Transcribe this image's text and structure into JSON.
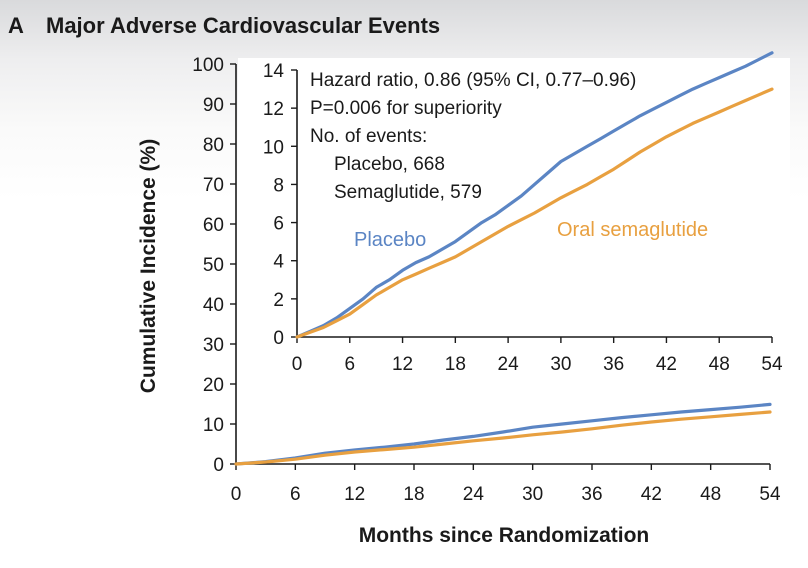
{
  "panel_letter": "A",
  "title": "Major Adverse Cardiovascular Events",
  "colors": {
    "placebo": "#5b85c4",
    "semaglutide": "#e8a040",
    "axis": "#1a1a1a"
  },
  "chart_data": [
    {
      "id": "main",
      "type": "line",
      "title": "Major Adverse Cardiovascular Events",
      "xlabel": "Months since Randomization",
      "ylabel": "Cumulative Incidence (%)",
      "xlim": [
        0,
        54
      ],
      "ylim": [
        0,
        100
      ],
      "xticks": [
        0,
        6,
        12,
        18,
        24,
        30,
        36,
        42,
        48,
        54
      ],
      "yticks": [
        0,
        10,
        20,
        30,
        40,
        50,
        60,
        70,
        80,
        90,
        100
      ],
      "series": [
        {
          "name": "Placebo",
          "x": [
            0,
            3,
            6,
            9,
            12,
            15,
            18,
            21,
            24,
            27,
            30,
            33,
            36,
            39,
            42,
            45,
            48,
            51,
            54
          ],
          "y": [
            0,
            0.6,
            1.5,
            2.7,
            3.5,
            4.2,
            5.0,
            6.0,
            6.9,
            8.0,
            9.2,
            10.0,
            10.8,
            11.6,
            12.3,
            13.0,
            13.6,
            14.2,
            14.9
          ]
        },
        {
          "name": "Oral semaglutide",
          "x": [
            0,
            3,
            6,
            9,
            12,
            15,
            18,
            21,
            24,
            27,
            30,
            33,
            36,
            39,
            42,
            45,
            48,
            51,
            54
          ],
          "y": [
            0,
            0.5,
            1.2,
            2.2,
            3.0,
            3.6,
            4.2,
            5.0,
            5.8,
            6.5,
            7.3,
            8.0,
            8.8,
            9.7,
            10.5,
            11.2,
            11.8,
            12.4,
            13.0
          ]
        }
      ]
    },
    {
      "id": "inset",
      "type": "line",
      "xlim": [
        0,
        54
      ],
      "ylim": [
        0,
        14
      ],
      "xticks": [
        0,
        6,
        12,
        18,
        24,
        30,
        36,
        42,
        48,
        54
      ],
      "yticks": [
        0,
        2,
        4,
        6,
        8,
        10,
        12,
        14
      ],
      "annotations": [
        "Hazard ratio, 0.86 (95% CI, 0.77–0.96)",
        "P=0.006 for superiority",
        "No. of events:",
        "Placebo, 668",
        "Semaglutide, 579"
      ],
      "series_labels": [
        "Placebo",
        "Oral semaglutide"
      ],
      "series": [
        {
          "name": "Placebo",
          "x": [
            0,
            1.5,
            3,
            4.5,
            6,
            7.5,
            9,
            10.5,
            12,
            13.5,
            15,
            16.5,
            18,
            19.5,
            21,
            22.5,
            24,
            25.5,
            27,
            28.5,
            30,
            31.5,
            33,
            34.5,
            36,
            37.5,
            39,
            40.5,
            42,
            43.5,
            45,
            46.5,
            48,
            49.5,
            51,
            52.5,
            54
          ],
          "y": [
            0,
            0.3,
            0.6,
            1.0,
            1.5,
            2.0,
            2.6,
            3.0,
            3.5,
            3.9,
            4.2,
            4.6,
            5.0,
            5.5,
            6.0,
            6.4,
            6.9,
            7.4,
            8.0,
            8.6,
            9.2,
            9.6,
            10.0,
            10.4,
            10.8,
            11.2,
            11.6,
            11.95,
            12.3,
            12.65,
            13.0,
            13.3,
            13.6,
            13.9,
            14.2,
            14.55,
            14.9
          ]
        },
        {
          "name": "Oral semaglutide",
          "x": [
            0,
            1.5,
            3,
            4.5,
            6,
            7.5,
            9,
            10.5,
            12,
            13.5,
            15,
            16.5,
            18,
            19.5,
            21,
            22.5,
            24,
            25.5,
            27,
            28.5,
            30,
            31.5,
            33,
            34.5,
            36,
            37.5,
            39,
            40.5,
            42,
            43.5,
            45,
            46.5,
            48,
            49.5,
            51,
            52.5,
            54
          ],
          "y": [
            0,
            0.25,
            0.5,
            0.85,
            1.2,
            1.7,
            2.2,
            2.6,
            3.0,
            3.3,
            3.6,
            3.9,
            4.2,
            4.6,
            5.0,
            5.4,
            5.8,
            6.15,
            6.5,
            6.9,
            7.3,
            7.65,
            8.0,
            8.4,
            8.8,
            9.25,
            9.7,
            10.1,
            10.5,
            10.85,
            11.2,
            11.5,
            11.8,
            12.1,
            12.4,
            12.7,
            13.0
          ]
        }
      ]
    }
  ]
}
